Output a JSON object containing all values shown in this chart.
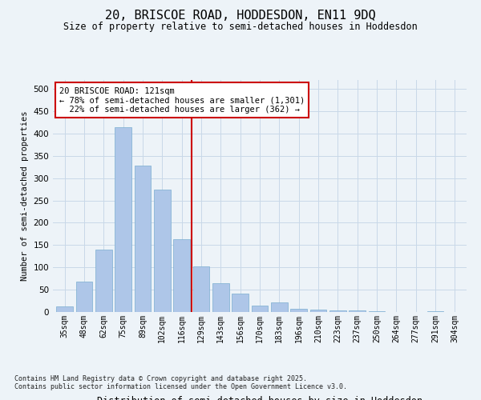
{
  "title1": "20, BRISCOE ROAD, HODDESDON, EN11 9DQ",
  "title2": "Size of property relative to semi-detached houses in Hoddesdon",
  "xlabel": "Distribution of semi-detached houses by size in Hoddesdon",
  "ylabel": "Number of semi-detached properties",
  "categories": [
    "35sqm",
    "48sqm",
    "62sqm",
    "75sqm",
    "89sqm",
    "102sqm",
    "116sqm",
    "129sqm",
    "143sqm",
    "156sqm",
    "170sqm",
    "183sqm",
    "196sqm",
    "210sqm",
    "223sqm",
    "237sqm",
    "250sqm",
    "264sqm",
    "277sqm",
    "291sqm",
    "304sqm"
  ],
  "values": [
    13,
    68,
    140,
    415,
    328,
    275,
    163,
    103,
    65,
    42,
    14,
    22,
    8,
    6,
    4,
    3,
    1,
    0,
    0,
    1,
    0
  ],
  "bar_color": "#aec6e8",
  "bar_edge_color": "#7aaed0",
  "grid_color": "#c8d8e8",
  "bg_color": "#edf3f8",
  "vline_color": "#cc0000",
  "annotation_line1": "20 BRISCOE ROAD: 121sqm",
  "annotation_line2": "← 78% of semi-detached houses are smaller (1,301)",
  "annotation_line3": "  22% of semi-detached houses are larger (362) →",
  "annotation_box_color": "#cc0000",
  "annotation_fill": "#ffffff",
  "ylim": [
    0,
    520
  ],
  "yticks": [
    0,
    50,
    100,
    150,
    200,
    250,
    300,
    350,
    400,
    450,
    500
  ],
  "footnote1": "Contains HM Land Registry data © Crown copyright and database right 2025.",
  "footnote2": "Contains public sector information licensed under the Open Government Licence v3.0."
}
